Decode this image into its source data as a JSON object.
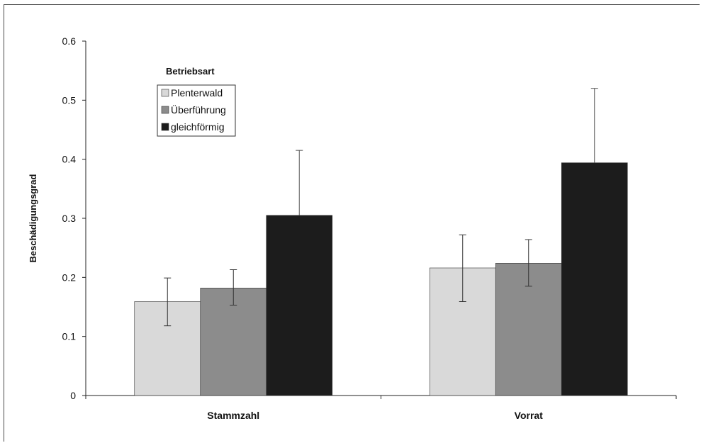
{
  "chart_data": {
    "type": "bar",
    "title": "",
    "xlabel": "",
    "ylabel": "Beschädigungsgrad",
    "ylim": [
      0,
      0.6
    ],
    "yticks": [
      "0",
      "0.1",
      "0.2",
      "0.3",
      "0.4",
      "0.5",
      "0.6"
    ],
    "categories": [
      "Stammzahl",
      "Vorrat"
    ],
    "legend_title": "Betriebsart",
    "legend_position": "top-left",
    "grid": false,
    "series": [
      {
        "name": "Plenterwald",
        "color": "#d9d9d9",
        "values": [
          0.159,
          0.216
        ],
        "error_upper": [
          0.199,
          0.272
        ],
        "error_lower": [
          0.118,
          0.159
        ]
      },
      {
        "name": "Überführung",
        "color": "#8c8c8c",
        "values": [
          0.182,
          0.224
        ],
        "error_upper": [
          0.213,
          0.264
        ],
        "error_lower": [
          0.153,
          0.185
        ]
      },
      {
        "name": "gleichförmig",
        "color": "#1c1c1c",
        "values": [
          0.305,
          0.394
        ],
        "error_upper": [
          0.415,
          0.52
        ],
        "error_lower": [
          0.305,
          0.394
        ]
      }
    ]
  }
}
